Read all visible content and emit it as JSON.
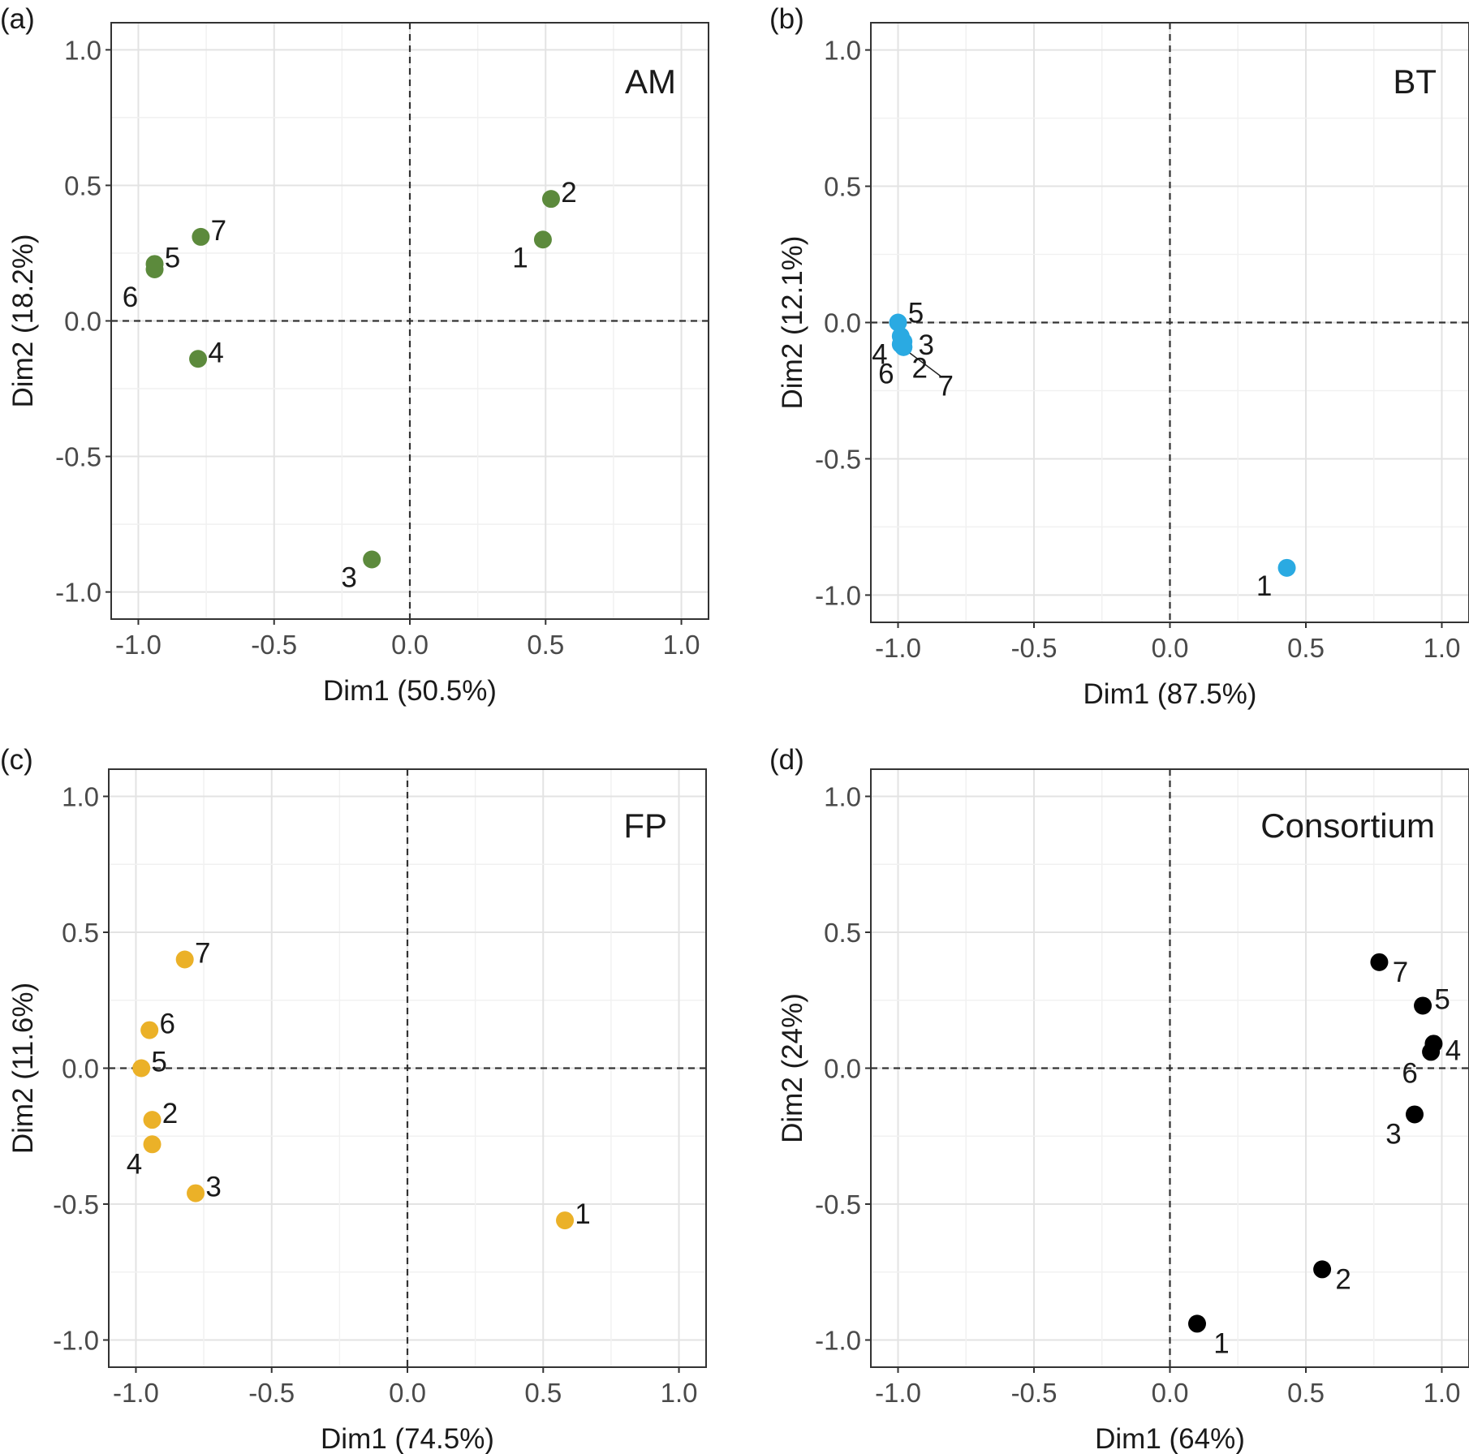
{
  "chart_data": [
    {
      "type": "scatter",
      "panel_letter": "(a)",
      "tag": "AM",
      "xlabel": "Dim1 (50.5%)",
      "ylabel": "Dim2 (18.2%)",
      "xlim": [
        -1.1,
        1.1
      ],
      "ylim": [
        -1.1,
        1.1
      ],
      "xticks": [
        "-1.0",
        "-0.5",
        "0.0",
        "0.5",
        "1.0"
      ],
      "yticks": [
        "-1.0",
        "-0.5",
        "0.0",
        "0.5",
        "1.0"
      ],
      "grid": true,
      "reference_lines": "dashed at x=0 and y=0",
      "color": "#5c8a3c",
      "points": [
        {
          "label": "1",
          "x": 0.49,
          "y": 0.3
        },
        {
          "label": "2",
          "x": 0.52,
          "y": 0.45
        },
        {
          "label": "3",
          "x": -0.14,
          "y": -0.88
        },
        {
          "label": "4",
          "x": -0.78,
          "y": -0.14
        },
        {
          "label": "5",
          "x": -0.94,
          "y": 0.21
        },
        {
          "label": "6",
          "x": -0.94,
          "y": 0.19
        },
        {
          "label": "7",
          "x": -0.77,
          "y": 0.31
        }
      ]
    },
    {
      "type": "scatter",
      "panel_letter": "(b)",
      "tag": "BT",
      "xlabel": "Dim1 (87.5%)",
      "ylabel": "Dim2 (12.1%)",
      "xlim": [
        -1.1,
        1.1
      ],
      "ylim": [
        -1.1,
        1.1
      ],
      "xticks": [
        "-1.0",
        "-0.5",
        "0.0",
        "0.5",
        "1.0"
      ],
      "yticks": [
        "-1.0",
        "-0.5",
        "0.0",
        "0.5",
        "1.0"
      ],
      "grid": true,
      "reference_lines": "dashed at x=0 and y=0",
      "color": "#2aaae2",
      "points": [
        {
          "label": "1",
          "x": 0.43,
          "y": -0.9
        },
        {
          "label": "2",
          "x": -0.98,
          "y": -0.09
        },
        {
          "label": "3",
          "x": -0.98,
          "y": -0.07
        },
        {
          "label": "4",
          "x": -0.99,
          "y": -0.05
        },
        {
          "label": "5",
          "x": -1.0,
          "y": 0.0
        },
        {
          "label": "6",
          "x": -0.99,
          "y": -0.08
        },
        {
          "label": "7",
          "x": -0.98,
          "y": -0.09
        }
      ]
    },
    {
      "type": "scatter",
      "panel_letter": "(c)",
      "tag": "FP",
      "xlabel": "Dim1 (74.5%)",
      "ylabel": "Dim2 (11.6%)",
      "xlim": [
        -1.1,
        1.1
      ],
      "ylim": [
        -1.1,
        1.1
      ],
      "xticks": [
        "-1.0",
        "-0.5",
        "0.0",
        "0.5",
        "1.0"
      ],
      "yticks": [
        "-1.0",
        "-0.5",
        "0.0",
        "0.5",
        "1.0"
      ],
      "grid": true,
      "reference_lines": "dashed at x=0 and y=0",
      "color": "#ebb128",
      "points": [
        {
          "label": "1",
          "x": 0.58,
          "y": -0.56
        },
        {
          "label": "2",
          "x": -0.94,
          "y": -0.19
        },
        {
          "label": "3",
          "x": -0.78,
          "y": -0.46
        },
        {
          "label": "4",
          "x": -0.94,
          "y": -0.28
        },
        {
          "label": "5",
          "x": -0.98,
          "y": 0.0
        },
        {
          "label": "6",
          "x": -0.95,
          "y": 0.14
        },
        {
          "label": "7",
          "x": -0.82,
          "y": 0.4
        }
      ]
    },
    {
      "type": "scatter",
      "panel_letter": "(d)",
      "tag": "Consortium",
      "xlabel": "Dim1 (64%)",
      "ylabel": "Dim2 (24%)",
      "xlim": [
        -1.1,
        1.1
      ],
      "ylim": [
        -1.1,
        1.1
      ],
      "xticks": [
        "-1.0",
        "-0.5",
        "0.0",
        "0.5",
        "1.0"
      ],
      "yticks": [
        "-1.0",
        "-0.5",
        "0.0",
        "0.5",
        "1.0"
      ],
      "grid": true,
      "reference_lines": "dashed at x=0 and y=0",
      "color": "#000000",
      "points": [
        {
          "label": "1",
          "x": 0.1,
          "y": -0.94
        },
        {
          "label": "2",
          "x": 0.56,
          "y": -0.74
        },
        {
          "label": "3",
          "x": 0.9,
          "y": -0.17
        },
        {
          "label": "4",
          "x": 0.97,
          "y": 0.09
        },
        {
          "label": "5",
          "x": 0.93,
          "y": 0.23
        },
        {
          "label": "6",
          "x": 0.96,
          "y": 0.06
        },
        {
          "label": "7",
          "x": 0.77,
          "y": 0.39
        }
      ]
    }
  ]
}
